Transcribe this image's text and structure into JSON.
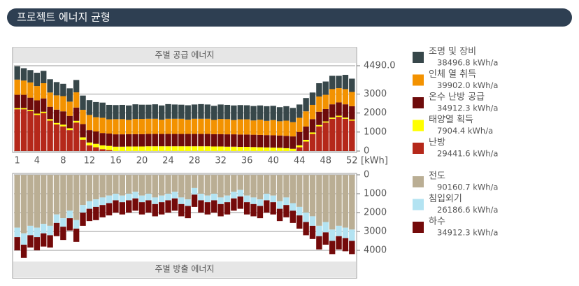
{
  "header": {
    "title": "프로젝트 에너지 균형"
  },
  "chart_data": [
    {
      "type": "bar",
      "stacked": true,
      "title": "주별 공급 에너지",
      "x_unit": "[kWh]",
      "categories": [
        "1",
        null,
        null,
        "4",
        null,
        null,
        null,
        "8",
        null,
        null,
        null,
        "12",
        null,
        null,
        null,
        "16",
        null,
        null,
        null,
        "20",
        null,
        null,
        null,
        "24",
        null,
        null,
        null,
        "28",
        null,
        null,
        null,
        "32",
        null,
        null,
        null,
        "36",
        null,
        null,
        null,
        "40",
        null,
        null,
        null,
        "44",
        null,
        null,
        null,
        "48",
        null,
        null,
        null,
        "52"
      ],
      "ylim": [
        0,
        4490
      ],
      "yticks": [
        0,
        1000,
        2000,
        3000,
        {
          "value": 4490,
          "label": "4490.0"
        }
      ],
      "grid": true,
      "series": [
        {
          "name": "조명 및 장비",
          "color": "#37474a",
          "total": 38496.8,
          "total_label": "38496.8 kWh/a",
          "values": [
            700,
            650,
            650,
            700,
            650,
            700,
            700,
            650,
            700,
            650,
            750,
            780,
            800,
            800,
            760,
            740,
            750,
            760,
            770,
            750,
            740,
            760,
            750,
            770,
            750,
            740,
            760,
            750,
            770,
            750,
            740,
            760,
            750,
            770,
            750,
            740,
            760,
            750,
            770,
            750,
            740,
            760,
            750,
            700,
            700,
            650,
            700,
            700,
            700,
            650,
            750,
            700
          ]
        },
        {
          "name": "인체 열 취득",
          "color": "#f39200",
          "total": 39902.0,
          "total_label": "39902.0 kWh/a",
          "values": [
            800,
            750,
            800,
            750,
            800,
            750,
            750,
            800,
            750,
            800,
            750,
            800,
            750,
            800,
            750,
            800,
            800,
            750,
            800,
            800,
            800,
            800,
            750,
            800,
            800,
            800,
            750,
            800,
            800,
            800,
            750,
            800,
            800,
            750,
            800,
            800,
            750,
            800,
            750,
            800,
            750,
            800,
            750,
            750,
            800,
            750,
            800,
            750,
            800,
            750,
            800,
            750
          ]
        },
        {
          "name": "온수 난방 공급",
          "color": "#6e0b0b",
          "total": 34912.3,
          "total_label": "34912.3 kWh/a",
          "values": [
            700,
            700,
            650,
            700,
            700,
            650,
            700,
            700,
            650,
            700,
            700,
            650,
            650,
            650,
            650,
            650,
            650,
            650,
            650,
            650,
            650,
            650,
            650,
            650,
            650,
            650,
            650,
            650,
            650,
            650,
            650,
            650,
            650,
            650,
            650,
            650,
            650,
            650,
            650,
            650,
            650,
            650,
            650,
            700,
            700,
            700,
            700,
            650,
            700,
            700,
            700,
            700
          ]
        },
        {
          "name": "태양열 획득",
          "color": "#ffff00",
          "total": 7904.4,
          "total_label": "7904.4 kWh/a",
          "values": [
            60,
            60,
            60,
            70,
            70,
            80,
            80,
            90,
            100,
            90,
            120,
            150,
            180,
            200,
            220,
            230,
            230,
            240,
            240,
            240,
            250,
            250,
            250,
            250,
            250,
            250,
            250,
            250,
            250,
            250,
            240,
            240,
            230,
            230,
            220,
            220,
            210,
            200,
            190,
            180,
            170,
            150,
            120,
            100,
            90,
            80,
            70,
            60,
            60,
            60,
            60,
            60
          ]
        },
        {
          "name": "난방",
          "color": "#b5281a",
          "total": 29441.6,
          "total_label": "29441.6 kWh/a",
          "values": [
            2200,
            2200,
            2100,
            1900,
            2000,
            1600,
            1400,
            1300,
            1100,
            1500,
            600,
            300,
            200,
            100,
            50,
            0,
            0,
            0,
            0,
            0,
            0,
            0,
            0,
            0,
            0,
            0,
            0,
            0,
            0,
            0,
            0,
            0,
            0,
            0,
            0,
            0,
            0,
            0,
            0,
            0,
            0,
            0,
            0,
            200,
            500,
            900,
            1300,
            1500,
            1700,
            1800,
            1700,
            1600
          ]
        }
      ]
    },
    {
      "type": "bar",
      "stacked": true,
      "title": "주별 방출 에너지",
      "y_inverted": true,
      "ylim": [
        0,
        4400
      ],
      "yticks": [
        0,
        1000,
        2000,
        3000,
        4000
      ],
      "grid": true,
      "series": [
        {
          "name": "전도",
          "color": "#baae94",
          "total": 90160.7,
          "total_label": "90160.7 kWh/a",
          "values": [
            2800,
            3100,
            2700,
            2800,
            2600,
            2700,
            2100,
            2300,
            1900,
            2400,
            1600,
            1400,
            1300,
            1200,
            1100,
            1000,
            1100,
            1000,
            900,
            1100,
            1000,
            1200,
            1100,
            1000,
            900,
            1200,
            1300,
            700,
            1000,
            1100,
            1000,
            1200,
            1100,
            900,
            800,
            1100,
            1200,
            1300,
            1000,
            1100,
            1400,
            1200,
            1500,
            1700,
            2000,
            2200,
            2700,
            2500,
            2900,
            2700,
            2800,
            2900
          ]
        },
        {
          "name": "침입외기",
          "color": "#b3e3f2",
          "total": 26186.6,
          "total_label": "26186.6 kWh/a",
          "values": [
            500,
            600,
            500,
            500,
            500,
            500,
            450,
            450,
            400,
            450,
            400,
            400,
            400,
            400,
            400,
            350,
            350,
            350,
            350,
            350,
            350,
            350,
            350,
            350,
            350,
            350,
            350,
            350,
            350,
            350,
            350,
            350,
            350,
            350,
            350,
            350,
            350,
            350,
            350,
            350,
            400,
            400,
            400,
            450,
            500,
            500,
            550,
            550,
            600,
            550,
            550,
            600
          ]
        },
        {
          "name": "하수",
          "color": "#740a0a",
          "total": 34912.3,
          "total_label": "34912.3 kWh/a",
          "values": [
            700,
            700,
            650,
            700,
            700,
            650,
            700,
            700,
            650,
            700,
            700,
            650,
            700,
            650,
            650,
            650,
            650,
            650,
            650,
            650,
            650,
            650,
            650,
            650,
            650,
            650,
            650,
            650,
            650,
            650,
            650,
            650,
            650,
            650,
            650,
            650,
            650,
            650,
            650,
            650,
            650,
            650,
            650,
            700,
            700,
            700,
            700,
            650,
            700,
            700,
            700,
            700
          ]
        }
      ]
    }
  ]
}
